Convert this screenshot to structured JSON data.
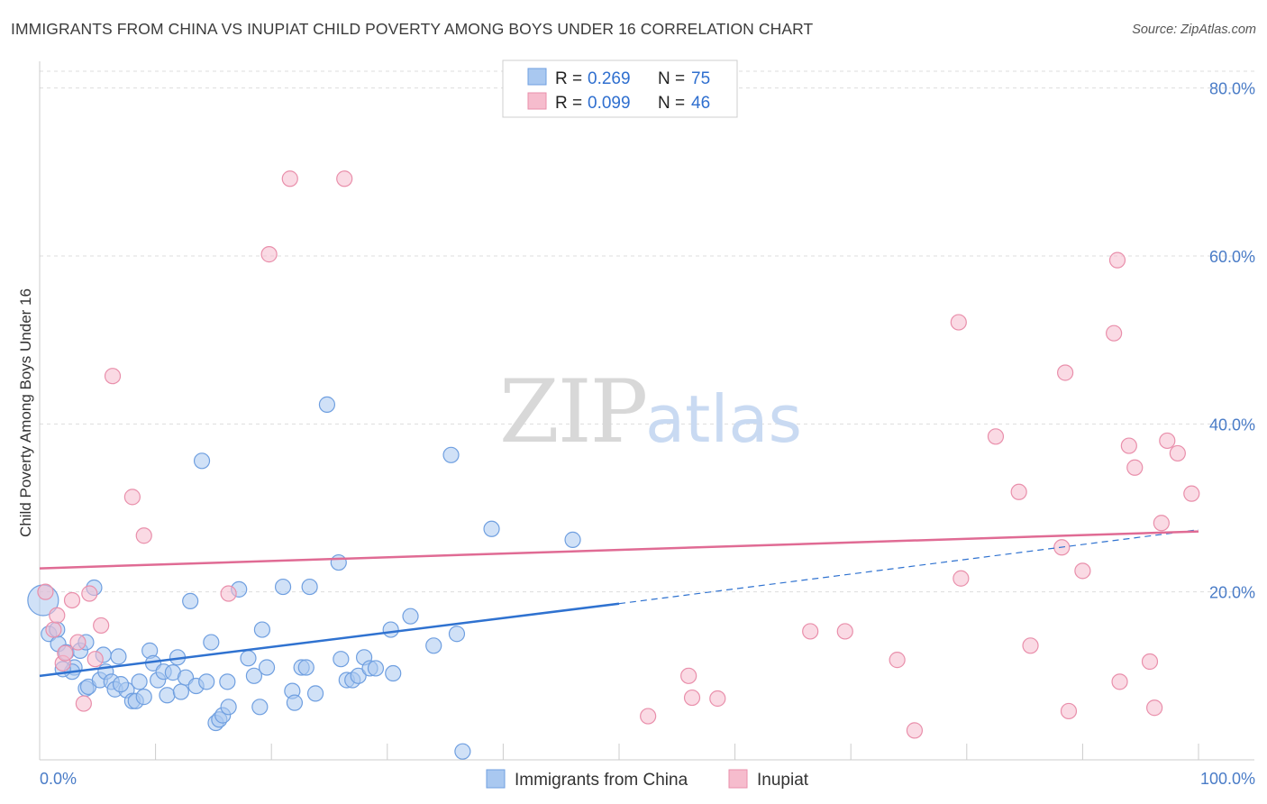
{
  "title": "IMMIGRANTS FROM CHINA VS INUPIAT CHILD POVERTY AMONG BOYS UNDER 16 CORRELATION CHART",
  "source": "Source: ZipAtlas.com",
  "watermark": {
    "zip": "ZIP",
    "atlas": "atlas"
  },
  "colors": {
    "blue_fill": "#a9c8f0",
    "blue_stroke": "#6f9fe0",
    "blue_line": "#2f72d0",
    "pink_fill": "#f6bccd",
    "pink_stroke": "#e98fab",
    "pink_line": "#e06b94",
    "axis_text": "#4a7cc7",
    "grid": "#dddddd"
  },
  "legend": {
    "rows": [
      {
        "r_label": "R =",
        "r_value": "0.269",
        "n_label": "N =",
        "n_value": "75"
      },
      {
        "r_label": "R =",
        "r_value": "0.099",
        "n_label": "N =",
        "n_value": "46"
      }
    ]
  },
  "chart_data": {
    "type": "scatter",
    "title": "IMMIGRANTS FROM CHINA VS INUPIAT CHILD POVERTY AMONG BOYS UNDER 16 CORRELATION CHART",
    "xlabel": "",
    "ylabel": "Child Poverty Among Boys Under 16",
    "xlim": [
      0,
      100
    ],
    "ylim": [
      0,
      82
    ],
    "y_ticks": [
      20,
      40,
      60,
      80
    ],
    "y_tick_labels": [
      "20.0%",
      "40.0%",
      "60.0%",
      "80.0%"
    ],
    "x_tick_labels": [
      "0.0%",
      "100.0%"
    ],
    "grid": true,
    "series": [
      {
        "name": "Immigrants from China",
        "color": "#a9c8f0",
        "r": 0.269,
        "n": 75,
        "trend": {
          "x0": 0,
          "y0": 10.0,
          "x1": 50,
          "y1": 18.6,
          "dash_to_x": 100,
          "dash_to_y": 27.4
        },
        "points": [
          [
            0.3,
            19.0
          ],
          [
            0.8,
            15.0
          ],
          [
            1.5,
            15.5
          ],
          [
            1.6,
            13.8
          ],
          [
            2.3,
            12.8
          ],
          [
            3.0,
            11.0
          ],
          [
            2.8,
            10.5
          ],
          [
            3.5,
            13.0
          ],
          [
            4.0,
            8.5
          ],
          [
            4.2,
            8.7
          ],
          [
            4.7,
            20.5
          ],
          [
            5.2,
            9.5
          ],
          [
            5.5,
            12.5
          ],
          [
            5.7,
            10.5
          ],
          [
            6.2,
            9.3
          ],
          [
            6.5,
            8.4
          ],
          [
            6.8,
            12.3
          ],
          [
            7.5,
            8.3
          ],
          [
            8.0,
            7.0
          ],
          [
            8.3,
            7.0
          ],
          [
            8.6,
            9.3
          ],
          [
            9.0,
            7.5
          ],
          [
            9.5,
            13.0
          ],
          [
            9.8,
            11.5
          ],
          [
            10.2,
            9.5
          ],
          [
            10.7,
            10.5
          ],
          [
            11.0,
            7.7
          ],
          [
            11.5,
            10.4
          ],
          [
            11.9,
            12.2
          ],
          [
            12.2,
            8.1
          ],
          [
            12.6,
            9.8
          ],
          [
            13.0,
            18.9
          ],
          [
            13.5,
            8.8
          ],
          [
            14.0,
            35.6
          ],
          [
            14.4,
            9.3
          ],
          [
            14.8,
            14.0
          ],
          [
            15.2,
            4.4
          ],
          [
            15.5,
            4.8
          ],
          [
            15.8,
            5.3
          ],
          [
            16.3,
            6.3
          ],
          [
            16.2,
            9.3
          ],
          [
            17.2,
            20.3
          ],
          [
            18.0,
            12.1
          ],
          [
            18.5,
            10.0
          ],
          [
            19.0,
            6.3
          ],
          [
            19.2,
            15.5
          ],
          [
            19.6,
            11.0
          ],
          [
            21.0,
            20.6
          ],
          [
            21.8,
            8.2
          ],
          [
            22.0,
            6.8
          ],
          [
            22.6,
            11.0
          ],
          [
            23.0,
            11.0
          ],
          [
            23.3,
            20.6
          ],
          [
            23.8,
            7.9
          ],
          [
            24.8,
            42.3
          ],
          [
            25.8,
            23.5
          ],
          [
            26.0,
            12.0
          ],
          [
            26.5,
            9.5
          ],
          [
            27.0,
            9.5
          ],
          [
            27.5,
            10.0
          ],
          [
            28.0,
            12.2
          ],
          [
            28.5,
            10.9
          ],
          [
            29.0,
            10.9
          ],
          [
            30.3,
            15.5
          ],
          [
            30.5,
            10.3
          ],
          [
            32.0,
            17.1
          ],
          [
            34.0,
            13.6
          ],
          [
            35.5,
            36.3
          ],
          [
            36.0,
            15.0
          ],
          [
            36.5,
            1.0
          ],
          [
            39.0,
            27.5
          ],
          [
            46.0,
            26.2
          ],
          [
            4.0,
            14.0
          ],
          [
            7.0,
            9.0
          ],
          [
            2.0,
            10.8
          ]
        ]
      },
      {
        "name": "Inupiat",
        "color": "#f6bccd",
        "r": 0.099,
        "n": 46,
        "trend": {
          "x0": 0,
          "y0": 22.8,
          "x1": 100,
          "y1": 27.2
        },
        "points": [
          [
            0.5,
            20.0
          ],
          [
            1.2,
            15.5
          ],
          [
            1.5,
            17.2
          ],
          [
            2.0,
            11.5
          ],
          [
            2.2,
            12.7
          ],
          [
            2.8,
            19.0
          ],
          [
            3.3,
            14.0
          ],
          [
            3.8,
            6.7
          ],
          [
            4.3,
            19.8
          ],
          [
            4.8,
            12.0
          ],
          [
            5.3,
            16.0
          ],
          [
            6.3,
            45.7
          ],
          [
            8.0,
            31.3
          ],
          [
            9.0,
            26.7
          ],
          [
            16.3,
            19.8
          ],
          [
            19.8,
            60.2
          ],
          [
            21.6,
            69.2
          ],
          [
            26.3,
            69.2
          ],
          [
            52.5,
            5.2
          ],
          [
            56.0,
            10.0
          ],
          [
            56.3,
            7.4
          ],
          [
            58.5,
            7.3
          ],
          [
            66.5,
            15.3
          ],
          [
            69.5,
            15.3
          ],
          [
            74.0,
            11.9
          ],
          [
            75.5,
            3.5
          ],
          [
            79.5,
            21.6
          ],
          [
            79.3,
            52.1
          ],
          [
            82.5,
            38.5
          ],
          [
            84.5,
            31.9
          ],
          [
            85.5,
            13.6
          ],
          [
            88.2,
            25.3
          ],
          [
            88.5,
            46.1
          ],
          [
            88.8,
            5.8
          ],
          [
            90.0,
            22.5
          ],
          [
            92.7,
            50.8
          ],
          [
            93.0,
            59.5
          ],
          [
            93.2,
            9.3
          ],
          [
            94.0,
            37.4
          ],
          [
            94.5,
            34.8
          ],
          [
            95.8,
            11.7
          ],
          [
            96.2,
            6.2
          ],
          [
            96.8,
            28.2
          ],
          [
            97.3,
            38.0
          ],
          [
            98.2,
            36.5
          ],
          [
            99.4,
            31.7
          ]
        ]
      }
    ]
  },
  "bottom_legend": {
    "items": [
      "Immigrants from China",
      "Inupiat"
    ]
  }
}
